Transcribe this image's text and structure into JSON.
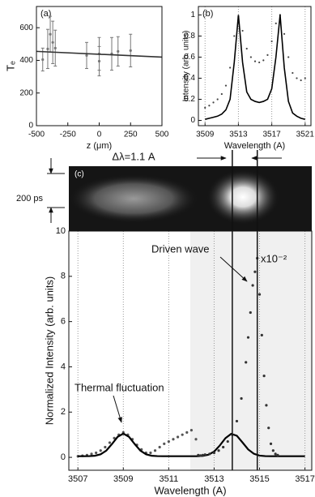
{
  "chart_data": [
    {
      "type": "scatter",
      "label": "(a)",
      "x_label": "z (μm)",
      "y_label": "Tₑ",
      "xlim": [
        -500,
        500
      ],
      "xticks": [
        -500,
        -250,
        0,
        250,
        500
      ],
      "ylim": [
        0,
        730
      ],
      "yticks": [
        0,
        200,
        400,
        600
      ],
      "grid_x": false,
      "series": [
        {
          "style": "errorbar",
          "color": "#777777",
          "x": [
            -450,
            -410,
            -390,
            -370,
            -350,
            -100,
            0,
            0,
            100,
            150,
            250
          ],
          "values": [
            405,
            470,
            560,
            510,
            475,
            430,
            440,
            395,
            440,
            455,
            460
          ],
          "errors": [
            70,
            120,
            110,
            130,
            110,
            80,
            100,
            90,
            100,
            90,
            100
          ]
        },
        {
          "style": "line",
          "color": "#333333",
          "x": [
            -500,
            500
          ],
          "values": [
            455,
            420
          ]
        }
      ]
    },
    {
      "type": "line",
      "label": "(b)",
      "x_label": "Wavelength (A)",
      "y_label": "Intensity (arb. units)",
      "xlim": [
        3508.2,
        3521.7
      ],
      "xticks": [
        3509,
        3513,
        3517,
        3521
      ],
      "ylim": [
        -0.05,
        1.08
      ],
      "yticks": [
        0,
        0.2,
        0.4,
        0.6,
        0.8,
        1
      ],
      "grid_x": true,
      "series": [
        {
          "style": "points",
          "color": "#444444",
          "x": [
            3509,
            3509.5,
            3510,
            3510.5,
            3511,
            3511.5,
            3512,
            3512.5,
            3513,
            3513.5,
            3514,
            3514.5,
            3515,
            3515.5,
            3516,
            3516.5,
            3517,
            3517.5,
            3518,
            3518.5,
            3519,
            3519.5,
            3520,
            3520.5,
            3521
          ],
          "values": [
            0.12,
            0.14,
            0.17,
            0.2,
            0.25,
            0.33,
            0.5,
            0.8,
            0.98,
            0.85,
            0.68,
            0.6,
            0.56,
            0.55,
            0.57,
            0.62,
            0.75,
            0.92,
            1.0,
            0.82,
            0.6,
            0.45,
            0.4,
            0.38,
            0.4
          ]
        },
        {
          "style": "line",
          "color": "#000000",
          "x": [
            3509,
            3509.5,
            3510,
            3510.5,
            3511,
            3511.5,
            3512,
            3512.5,
            3513,
            3513.5,
            3514,
            3514.5,
            3515,
            3515.5,
            3516,
            3516.5,
            3517,
            3517.5,
            3518,
            3518.5,
            3519,
            3519.5,
            3520,
            3520.5,
            3521
          ],
          "values": [
            0.01,
            0.02,
            0.03,
            0.04,
            0.06,
            0.1,
            0.2,
            0.55,
            1.0,
            0.55,
            0.27,
            0.2,
            0.18,
            0.17,
            0.18,
            0.2,
            0.3,
            0.6,
            1.0,
            0.5,
            0.18,
            0.07,
            0.04,
            0.02,
            0.01
          ]
        }
      ]
    },
    {
      "type": "line",
      "x_label": "Wavelength (A)",
      "y_label": "Normalized Intensity (arb. units)",
      "xlim": [
        3506.6,
        3517.3
      ],
      "xticks": [
        3507,
        3509,
        3511,
        3513,
        3515,
        3517
      ],
      "ylim": [
        -0.57,
        10
      ],
      "yticks": [
        0,
        2,
        4,
        6,
        8,
        10
      ],
      "grid_x": true,
      "vlines": [
        3513.8,
        3514.9
      ],
      "annotations": [
        "Thermal fluctuation",
        "Driven wave",
        "x10⁻²"
      ],
      "series": [
        {
          "style": "points",
          "color": "#555555",
          "x": [
            3507,
            3507.2,
            3507.4,
            3507.6,
            3507.8,
            3508,
            3508.2,
            3508.4,
            3508.6,
            3508.8,
            3509,
            3509.2,
            3509.4,
            3509.6,
            3509.8,
            3510,
            3510.2,
            3510.4,
            3510.6,
            3510.8,
            3511,
            3511.2,
            3511.4,
            3511.6,
            3511.8,
            3512,
            3512.2
          ],
          "values": [
            0.05,
            0.07,
            0.1,
            0.15,
            0.2,
            0.3,
            0.45,
            0.65,
            0.85,
            1.0,
            1.1,
            1.0,
            0.8,
            0.55,
            0.35,
            0.2,
            0.2,
            0.3,
            0.45,
            0.6,
            0.7,
            0.8,
            0.9,
            1.0,
            1.1,
            1.2,
            0.8
          ]
        },
        {
          "style": "line",
          "color": "#000000",
          "x": [
            3507,
            3507.25,
            3507.5,
            3507.75,
            3508,
            3508.25,
            3508.5,
            3508.75,
            3509,
            3509.25,
            3509.5,
            3509.75,
            3510,
            3510.25,
            3510.5,
            3510.75,
            3511,
            3511.25,
            3511.5,
            3511.75,
            3512,
            3512.25,
            3512.5,
            3512.75,
            3513,
            3513.25,
            3513.5,
            3513.75,
            3514,
            3514.25,
            3514.5,
            3514.75,
            3515,
            3515.25,
            3515.5,
            3515.75,
            3516,
            3516.25,
            3516.5,
            3516.75,
            3517
          ],
          "values": [
            0.05,
            0.05,
            0.054,
            0.071,
            0.135,
            0.299,
            0.589,
            0.907,
            1.05,
            0.907,
            0.589,
            0.299,
            0.135,
            0.071,
            0.054,
            0.05,
            0.05,
            0.05,
            0.05,
            0.05,
            0.05,
            0.05,
            0.065,
            0.116,
            0.256,
            0.524,
            0.85,
            1.04,
            0.956,
            0.657,
            0.348,
            0.158,
            0.078,
            0.055,
            0.05,
            0.05,
            0.05,
            0.05,
            0.05,
            0.05,
            0.05
          ]
        },
        {
          "style": "points",
          "color": "#333333",
          "x": [
            3512.3,
            3512.4,
            3512.5,
            3512.6,
            3512.8,
            3513,
            3513.2,
            3513.4,
            3513.6,
            3513.8,
            3514,
            3514.2,
            3514.4,
            3514.5,
            3514.6,
            3514.7,
            3514.8,
            3514.9,
            3515,
            3515.1,
            3515.2,
            3515.3,
            3515.4,
            3515.5,
            3515.6,
            3515.7,
            3515.8
          ],
          "values": [
            0.1,
            0.08,
            0.1,
            0.12,
            0.15,
            0.2,
            0.3,
            0.45,
            0.7,
            1.0,
            1.6,
            2.6,
            4.2,
            5.3,
            6.4,
            7.6,
            8.2,
            8.8,
            7.2,
            5.4,
            3.6,
            2.3,
            1.3,
            0.6,
            0.3,
            0.15,
            0.1
          ]
        }
      ]
    }
  ],
  "streak_image": {
    "label": "(c)",
    "time_scale": "200 ps",
    "width_label": "Δλ=1.1 A"
  }
}
